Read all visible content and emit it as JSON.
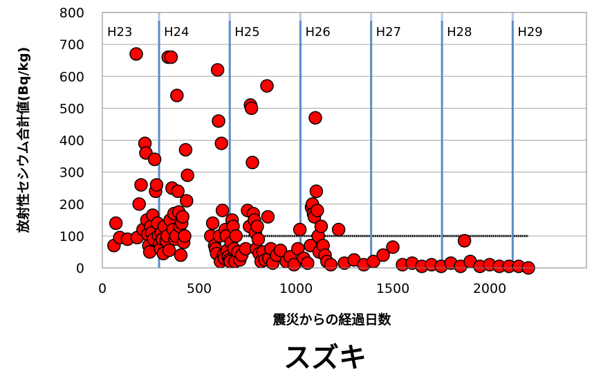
{
  "chart_data": {
    "type": "scatter",
    "title": "スズキ",
    "xlabel": "震災からの経過日数",
    "ylabel": "放射性セシウム合計値(Bq/kg)",
    "xlim": [
      0,
      2500
    ],
    "ylim": [
      0,
      800
    ],
    "xticks": [
      0,
      500,
      1000,
      1500,
      2000
    ],
    "yticks": [
      0,
      100,
      200,
      300,
      400,
      500,
      600,
      700,
      800
    ],
    "grid": "horizontal",
    "legend": "none",
    "colors": {
      "marker_fill": "#ff0000",
      "marker_edge": "#000000",
      "year_line": "#5b8ac6",
      "year_line_light": "#b4cbe6",
      "limit_line": "#000000"
    },
    "fiscal_years": [
      {
        "label": "H23",
        "x_start": 0,
        "x_end": 293
      },
      {
        "label": "H24",
        "x_start": 293,
        "x_end": 658
      },
      {
        "label": "H25",
        "x_start": 658,
        "x_end": 1023
      },
      {
        "label": "H26",
        "x_start": 1023,
        "x_end": 1388
      },
      {
        "label": "H27",
        "x_start": 1388,
        "x_end": 1754
      },
      {
        "label": "H28",
        "x_start": 1754,
        "x_end": 2119
      },
      {
        "label": "H29",
        "x_start": 2119,
        "x_end": 2500
      }
    ],
    "limit_line": {
      "y": 100,
      "x_start": 570,
      "x_end": 2200
    },
    "series": [
      {
        "points": [
          [
            60,
            70
          ],
          [
            70,
            140
          ],
          [
            90,
            95
          ],
          [
            130,
            90
          ],
          [
            175,
            670
          ],
          [
            180,
            95
          ],
          [
            190,
            200
          ],
          [
            200,
            260
          ],
          [
            210,
            120
          ],
          [
            220,
            390
          ],
          [
            225,
            360
          ],
          [
            230,
            150
          ],
          [
            235,
            105
          ],
          [
            240,
            70
          ],
          [
            245,
            50
          ],
          [
            250,
            130
          ],
          [
            255,
            110
          ],
          [
            260,
            165
          ],
          [
            265,
            90
          ],
          [
            270,
            340
          ],
          [
            275,
            240
          ],
          [
            280,
            260
          ],
          [
            285,
            140
          ],
          [
            290,
            100
          ],
          [
            295,
            75
          ],
          [
            300,
            60
          ],
          [
            305,
            110
          ],
          [
            310,
            90
          ],
          [
            315,
            45
          ],
          [
            320,
            130
          ],
          [
            330,
            85
          ],
          [
            335,
            100
          ],
          [
            340,
            660
          ],
          [
            345,
            55
          ],
          [
            350,
            150
          ],
          [
            355,
            660
          ],
          [
            360,
            250
          ],
          [
            365,
            120
          ],
          [
            370,
            170
          ],
          [
            375,
            90
          ],
          [
            380,
            100
          ],
          [
            385,
            540
          ],
          [
            390,
            240
          ],
          [
            395,
            175
          ],
          [
            400,
            130
          ],
          [
            405,
            40
          ],
          [
            410,
            140
          ],
          [
            415,
            160
          ],
          [
            420,
            80
          ],
          [
            425,
            100
          ],
          [
            430,
            370
          ],
          [
            435,
            210
          ],
          [
            440,
            290
          ],
          [
            560,
            100
          ],
          [
            570,
            140
          ],
          [
            580,
            70
          ],
          [
            585,
            60
          ],
          [
            590,
            45
          ],
          [
            595,
            620
          ],
          [
            600,
            460
          ],
          [
            605,
            100
          ],
          [
            610,
            20
          ],
          [
            615,
            390
          ],
          [
            620,
            180
          ],
          [
            625,
            40
          ],
          [
            630,
            30
          ],
          [
            635,
            120
          ],
          [
            640,
            100
          ],
          [
            645,
            55
          ],
          [
            650,
            35
          ],
          [
            655,
            25
          ],
          [
            660,
            20
          ],
          [
            665,
            80
          ],
          [
            670,
            150
          ],
          [
            675,
            130
          ],
          [
            680,
            60
          ],
          [
            685,
            20
          ],
          [
            690,
            100
          ],
          [
            700,
            50
          ],
          [
            710,
            25
          ],
          [
            720,
            40
          ],
          [
            740,
            60
          ],
          [
            750,
            180
          ],
          [
            760,
            130
          ],
          [
            765,
            510
          ],
          [
            770,
            500
          ],
          [
            775,
            330
          ],
          [
            780,
            170
          ],
          [
            785,
            150
          ],
          [
            790,
            110
          ],
          [
            795,
            60
          ],
          [
            800,
            130
          ],
          [
            805,
            90
          ],
          [
            810,
            45
          ],
          [
            820,
            20
          ],
          [
            830,
            50
          ],
          [
            840,
            25
          ],
          [
            850,
            570
          ],
          [
            855,
            160
          ],
          [
            860,
            30
          ],
          [
            870,
            60
          ],
          [
            880,
            15
          ],
          [
            900,
            40
          ],
          [
            920,
            55
          ],
          [
            950,
            20
          ],
          [
            970,
            35
          ],
          [
            990,
            10
          ],
          [
            1010,
            60
          ],
          [
            1020,
            120
          ],
          [
            1040,
            30
          ],
          [
            1060,
            15
          ],
          [
            1075,
            70
          ],
          [
            1080,
            190
          ],
          [
            1085,
            200
          ],
          [
            1090,
            170
          ],
          [
            1095,
            160
          ],
          [
            1100,
            470
          ],
          [
            1105,
            240
          ],
          [
            1110,
            180
          ],
          [
            1115,
            100
          ],
          [
            1120,
            50
          ],
          [
            1130,
            130
          ],
          [
            1140,
            70
          ],
          [
            1150,
            40
          ],
          [
            1160,
            20
          ],
          [
            1180,
            10
          ],
          [
            1220,
            120
          ],
          [
            1250,
            15
          ],
          [
            1300,
            25
          ],
          [
            1350,
            10
          ],
          [
            1400,
            20
          ],
          [
            1450,
            40
          ],
          [
            1500,
            65
          ],
          [
            1550,
            10
          ],
          [
            1600,
            15
          ],
          [
            1650,
            5
          ],
          [
            1700,
            10
          ],
          [
            1750,
            5
          ],
          [
            1800,
            15
          ],
          [
            1850,
            5
          ],
          [
            1870,
            85
          ],
          [
            1900,
            20
          ],
          [
            1950,
            5
          ],
          [
            2000,
            10
          ],
          [
            2050,
            5
          ],
          [
            2100,
            5
          ],
          [
            2150,
            5
          ],
          [
            2200,
            0
          ]
        ]
      }
    ]
  }
}
